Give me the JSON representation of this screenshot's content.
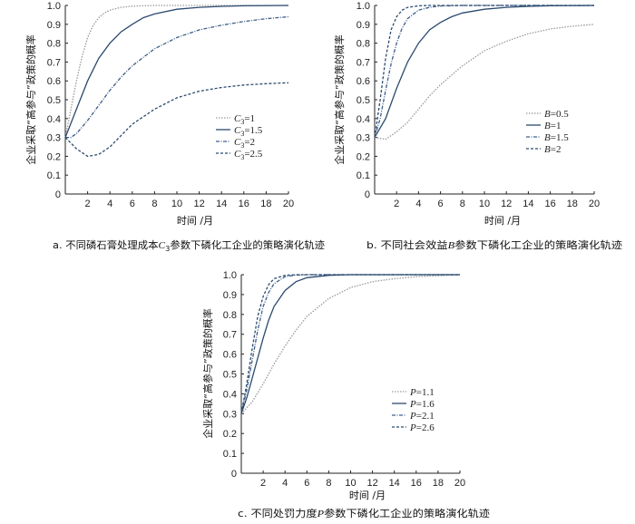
{
  "chart_data": [
    {
      "id": "a",
      "type": "line",
      "xlabel": "时间 /月",
      "ylabel": "企业采取“高参与”政策的概率",
      "caption": "a.  不同磷石膏处理成本C3参数下磷化工企业的策略演化轨迹",
      "xlim": [
        0,
        20
      ],
      "ylim": [
        0,
        1
      ],
      "xticks": [
        2,
        4,
        6,
        8,
        10,
        12,
        14,
        16,
        18,
        20
      ],
      "yticks": [
        0,
        0.1,
        0.2,
        0.3,
        0.4,
        0.5,
        0.6,
        0.7,
        0.8,
        0.9,
        1.0
      ],
      "legend_position": "center-right",
      "series": [
        {
          "name": "C3=1",
          "color": "#9a9a9a",
          "dash": "1.5,1.5",
          "x": [
            0,
            0.5,
            1,
            1.5,
            2,
            2.5,
            3,
            3.5,
            4,
            5,
            6,
            8,
            10,
            20
          ],
          "y": [
            0.3,
            0.45,
            0.6,
            0.73,
            0.83,
            0.895,
            0.935,
            0.96,
            0.975,
            0.99,
            0.996,
            1.0,
            1.0,
            1.0
          ]
        },
        {
          "name": "C3=1.5",
          "color": "#2b4a6e",
          "dash": "",
          "x": [
            0,
            1,
            2,
            3,
            4,
            5,
            6,
            7,
            8,
            10,
            12,
            14,
            16,
            20
          ],
          "y": [
            0.3,
            0.45,
            0.6,
            0.72,
            0.8,
            0.86,
            0.9,
            0.935,
            0.955,
            0.98,
            0.99,
            0.995,
            0.998,
            1.0
          ]
        },
        {
          "name": "C3=2",
          "color": "#3d5f8a",
          "dash": "4,1.5,1,1.5",
          "x": [
            0,
            0.5,
            1,
            2,
            3,
            4,
            5,
            6,
            8,
            10,
            12,
            14,
            16,
            18,
            20
          ],
          "y": [
            0.3,
            0.3,
            0.32,
            0.39,
            0.47,
            0.55,
            0.62,
            0.68,
            0.77,
            0.83,
            0.87,
            0.895,
            0.915,
            0.93,
            0.94
          ]
        },
        {
          "name": "C3=2.5",
          "color": "#2b4a6e",
          "dash": "3,2",
          "x": [
            0,
            1,
            2,
            3,
            4,
            5,
            6,
            8,
            10,
            12,
            14,
            16,
            18,
            20
          ],
          "y": [
            0.3,
            0.24,
            0.2,
            0.21,
            0.25,
            0.31,
            0.37,
            0.45,
            0.51,
            0.545,
            0.565,
            0.578,
            0.585,
            0.59
          ]
        }
      ]
    },
    {
      "id": "b",
      "type": "line",
      "xlabel": "时间 /月",
      "ylabel": "企业采取“高参与”政策的概率",
      "caption": "b.  不同社会效益B参数下磷化工企业的策略演化轨迹",
      "xlim": [
        0,
        20
      ],
      "ylim": [
        0,
        1
      ],
      "xticks": [
        2,
        4,
        6,
        8,
        10,
        12,
        14,
        16,
        18,
        20
      ],
      "yticks": [
        0,
        0.1,
        0.2,
        0.3,
        0.4,
        0.5,
        0.6,
        0.7,
        0.8,
        0.9,
        1.0
      ],
      "legend_position": "center-right",
      "series": [
        {
          "name": "B=0.5",
          "color": "#9a9a9a",
          "dash": "1.5,1.5",
          "x": [
            0,
            1,
            2,
            3,
            4,
            5,
            6,
            8,
            10,
            12,
            14,
            16,
            18,
            20
          ],
          "y": [
            0.3,
            0.29,
            0.33,
            0.38,
            0.45,
            0.52,
            0.58,
            0.68,
            0.76,
            0.81,
            0.85,
            0.875,
            0.89,
            0.9
          ]
        },
        {
          "name": "B=1",
          "color": "#2b4a6e",
          "dash": "",
          "x": [
            0,
            1,
            2,
            3,
            4,
            5,
            6,
            7,
            8,
            10,
            12,
            14,
            16,
            20
          ],
          "y": [
            0.3,
            0.4,
            0.56,
            0.7,
            0.8,
            0.87,
            0.91,
            0.94,
            0.96,
            0.98,
            0.99,
            0.995,
            0.998,
            1.0
          ]
        },
        {
          "name": "B=1.5",
          "color": "#3d5f8a",
          "dash": "4,1.5,1,1.5",
          "x": [
            0,
            0.5,
            1,
            1.5,
            2,
            2.5,
            3,
            4,
            5,
            6,
            8,
            20
          ],
          "y": [
            0.3,
            0.4,
            0.55,
            0.69,
            0.8,
            0.88,
            0.93,
            0.975,
            0.99,
            0.997,
            1.0,
            1.0
          ]
        },
        {
          "name": "B=2",
          "color": "#2b4a6e",
          "dash": "3,2",
          "x": [
            0,
            0.5,
            1,
            1.5,
            2,
            2.5,
            3,
            4,
            5,
            20
          ],
          "y": [
            0.3,
            0.5,
            0.72,
            0.87,
            0.94,
            0.975,
            0.99,
            0.998,
            1.0,
            1.0
          ]
        }
      ]
    },
    {
      "id": "c",
      "type": "line",
      "xlabel": "时间 /月",
      "ylabel": "企业采取“高参与”政策的概率",
      "caption": "c.  不同处罚力度P参数下磷化工企业的策略演化轨迹",
      "xlim": [
        0,
        20
      ],
      "ylim": [
        0,
        1
      ],
      "xticks": [
        2,
        4,
        6,
        8,
        10,
        12,
        14,
        16,
        18,
        20
      ],
      "yticks": [
        0,
        0.1,
        0.2,
        0.3,
        0.4,
        0.5,
        0.6,
        0.7,
        0.8,
        0.9,
        1.0
      ],
      "legend_position": "center-right",
      "series": [
        {
          "name": "P=1.1",
          "color": "#9a9a9a",
          "dash": "1.5,1.5",
          "x": [
            0,
            1,
            2,
            3,
            4,
            5,
            6,
            8,
            10,
            12,
            14,
            16,
            18,
            20
          ],
          "y": [
            0.3,
            0.36,
            0.45,
            0.55,
            0.64,
            0.72,
            0.79,
            0.88,
            0.935,
            0.965,
            0.98,
            0.99,
            0.995,
            1.0
          ]
        },
        {
          "name": "P=1.6",
          "color": "#2b4a6e",
          "dash": "",
          "x": [
            0,
            0.5,
            1,
            1.5,
            2,
            2.5,
            3,
            4,
            5,
            6,
            8,
            10,
            20
          ],
          "y": [
            0.3,
            0.38,
            0.48,
            0.58,
            0.68,
            0.77,
            0.84,
            0.92,
            0.965,
            0.985,
            0.997,
            1.0,
            1.0
          ]
        },
        {
          "name": "P=2.1",
          "color": "#3d5f8a",
          "dash": "4,1.5,1,1.5",
          "x": [
            0,
            0.5,
            1,
            1.5,
            2,
            2.5,
            3,
            4,
            5,
            6,
            20
          ],
          "y": [
            0.3,
            0.42,
            0.57,
            0.72,
            0.84,
            0.91,
            0.955,
            0.99,
            0.998,
            1.0,
            1.0
          ]
        },
        {
          "name": "P=2.6",
          "color": "#2b4a6e",
          "dash": "3,2",
          "x": [
            0,
            0.5,
            1,
            1.5,
            2,
            2.5,
            3,
            4,
            5,
            20
          ],
          "y": [
            0.3,
            0.45,
            0.63,
            0.79,
            0.89,
            0.95,
            0.98,
            0.997,
            1.0,
            1.0
          ]
        }
      ]
    }
  ]
}
